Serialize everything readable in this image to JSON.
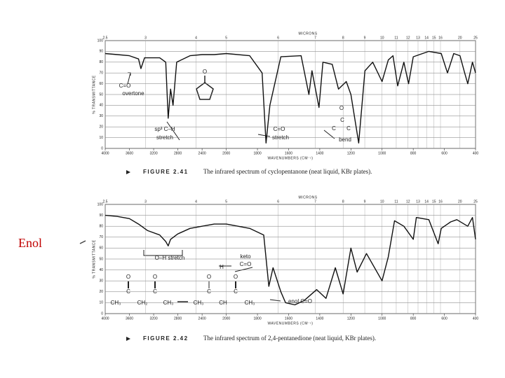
{
  "side_label": "Enol",
  "chart_data": [
    {
      "type": "line",
      "caption_label": "FIGURE 2.41",
      "caption": "The infrared spectrum of cyclopentanone (neat liquid, KBr plates).",
      "x_label": "WAVENUMBERS (CM⁻¹)",
      "y_label": "% TRANSMITTANCE",
      "x2_label": "MICRONS",
      "xlim": [
        4000,
        400
      ],
      "x_scale_break": 2000,
      "xticks": [
        4000,
        3600,
        3200,
        2800,
        2400,
        2000,
        1800,
        1600,
        1400,
        1200,
        1000,
        800,
        600,
        400
      ],
      "x2ticks": [
        2.5,
        3,
        4,
        5,
        6,
        7,
        8,
        9,
        10,
        11,
        12,
        13,
        14,
        15,
        16,
        20,
        25
      ],
      "ylim": [
        0,
        100
      ],
      "yticks": [
        0,
        10,
        20,
        30,
        40,
        50,
        60,
        70,
        80,
        90,
        100
      ],
      "grid": true,
      "color": "#111",
      "x": [
        4000,
        3800,
        3600,
        3450,
        3410,
        3350,
        3100,
        3000,
        2960,
        2920,
        2880,
        2820,
        2600,
        2400,
        2200,
        2000,
        1850,
        1770,
        1745,
        1720,
        1650,
        1520,
        1470,
        1450,
        1405,
        1380,
        1320,
        1280,
        1230,
        1200,
        1150,
        1110,
        1060,
        1000,
        960,
        930,
        900,
        860,
        830,
        800,
        700,
        620,
        580,
        540,
        500,
        470,
        450,
        420,
        400
      ],
      "values": [
        88,
        87,
        86,
        83,
        74,
        84,
        84,
        80,
        28,
        55,
        40,
        80,
        86,
        87,
        87,
        88,
        86,
        70,
        5,
        40,
        85,
        86,
        50,
        72,
        38,
        80,
        78,
        55,
        62,
        50,
        5,
        72,
        80,
        62,
        82,
        86,
        58,
        80,
        60,
        85,
        90,
        88,
        70,
        88,
        86,
        70,
        60,
        80,
        70
      ],
      "annotations": [
        "C=O",
        "overtone",
        "O",
        "sp³ C–H",
        "stretch",
        "C=O",
        "stretch",
        "O",
        "C",
        "C",
        "C",
        "bend"
      ]
    },
    {
      "type": "line",
      "caption_label": "FIGURE 2.42",
      "caption": "The infrared spectrum of 2,4-pentanedione (neat liquid, KBr plates).",
      "x_label": "WAVENUMBERS (CM⁻¹)",
      "y_label": "% TRANSMITTANCE",
      "x2_label": "MICRONS",
      "xlim": [
        4000,
        400
      ],
      "x_scale_break": 2000,
      "xticks": [
        4000,
        3600,
        3200,
        2800,
        2400,
        2000,
        1800,
        1600,
        1400,
        1200,
        1000,
        800,
        600,
        400
      ],
      "x2ticks": [
        2.5,
        3,
        4,
        5,
        6,
        7,
        8,
        9,
        10,
        11,
        12,
        13,
        14,
        15,
        16,
        20,
        25
      ],
      "ylim": [
        0,
        100
      ],
      "yticks": [
        0,
        10,
        20,
        30,
        40,
        50,
        60,
        70,
        80,
        90,
        100
      ],
      "grid": true,
      "color": "#111",
      "x": [
        4000,
        3800,
        3600,
        3450,
        3300,
        3100,
        3000,
        2960,
        2920,
        2800,
        2600,
        2400,
        2200,
        2000,
        1850,
        1760,
        1727,
        1700,
        1650,
        1620,
        1560,
        1500,
        1420,
        1360,
        1300,
        1250,
        1200,
        1160,
        1100,
        1000,
        960,
        920,
        860,
        800,
        780,
        700,
        640,
        620,
        560,
        520,
        450,
        420,
        400
      ],
      "values": [
        90,
        89,
        87,
        82,
        76,
        72,
        66,
        62,
        68,
        73,
        78,
        80,
        82,
        82,
        78,
        72,
        25,
        42,
        20,
        10,
        8,
        12,
        22,
        14,
        42,
        18,
        60,
        38,
        55,
        30,
        52,
        85,
        80,
        68,
        88,
        86,
        64,
        78,
        84,
        86,
        80,
        88,
        68
      ],
      "annotations": [
        "O–H stretch",
        "keto",
        "C=O",
        "H",
        "O",
        "O",
        "O",
        "O",
        "C",
        "C",
        "C",
        "C",
        "CH₃",
        "CH₂",
        "CH₃",
        "CH₃",
        "CH",
        "CH₃",
        "enol C=O"
      ]
    }
  ]
}
